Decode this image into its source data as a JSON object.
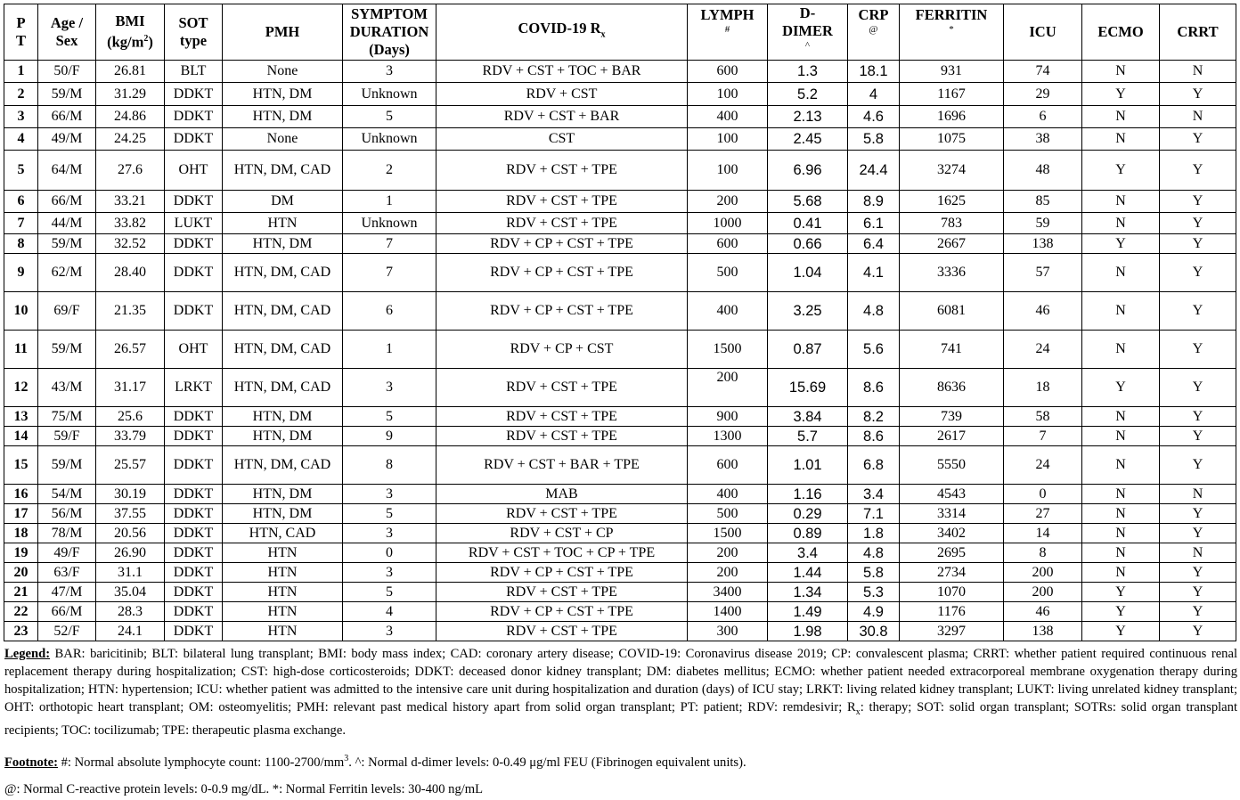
{
  "headers": {
    "pt": [
      "P",
      "T"
    ],
    "age": [
      "Age /",
      "Sex"
    ],
    "bmi": [
      "BMI",
      "(kg/m",
      "2",
      ")"
    ],
    "sot": [
      "SOT",
      "type"
    ],
    "pmh": "PMH",
    "symptom": [
      "SYMPTOM",
      "DURATION",
      "(Days)"
    ],
    "covid": [
      "COVID-19 R",
      "x"
    ],
    "lymph": [
      "LYMPH",
      "#"
    ],
    "ddimer": [
      "D-",
      "DIMER",
      "^"
    ],
    "crp": [
      "CRP",
      "@"
    ],
    "ferritin": [
      "FERRITIN",
      "*"
    ],
    "icu": "ICU",
    "ecmo": "ECMO",
    "crrt": "CRRT"
  },
  "rows": [
    [
      "1",
      "50/F",
      "26.81",
      "BLT",
      "None",
      "3",
      "RDV + CST + TOC + BAR",
      "600",
      "1.3",
      "18.1",
      "931",
      "74",
      "N",
      "N"
    ],
    [
      "2",
      "59/M",
      "31.29",
      "DDKT",
      "HTN, DM",
      "Unknown",
      "RDV + CST",
      "100",
      "5.2",
      "4",
      "1167",
      "29",
      "Y",
      "Y"
    ],
    [
      "3",
      "66/M",
      "24.86",
      "DDKT",
      "HTN, DM",
      "5",
      "RDV + CST + BAR",
      "400",
      "2.13",
      "4.6",
      "1696",
      "6",
      "N",
      "N"
    ],
    [
      "4",
      "49/M",
      "24.25",
      "DDKT",
      "None",
      "Unknown",
      "CST",
      "100",
      "2.45",
      "5.8",
      "1075",
      "38",
      "N",
      "Y"
    ],
    [
      "5",
      "64/M",
      "27.6",
      "OHT",
      "HTN, DM, CAD",
      "2",
      "RDV + CST + TPE",
      "100",
      "6.96",
      "24.4",
      "3274",
      "48",
      "Y",
      "Y"
    ],
    [
      "6",
      "66/M",
      "33.21",
      "DDKT",
      "DM",
      "1",
      "RDV + CST + TPE",
      "200",
      "5.68",
      "8.9",
      "1625",
      "85",
      "N",
      "Y"
    ],
    [
      "7",
      "44/M",
      "33.82",
      "LUKT",
      "HTN",
      "Unknown",
      "RDV + CST + TPE",
      "1000",
      "0.41",
      "6.1",
      "783",
      "59",
      "N",
      "Y"
    ],
    [
      "8",
      "59/M",
      "32.52",
      "DDKT",
      "HTN, DM",
      "7",
      "RDV + CP + CST + TPE",
      "600",
      "0.66",
      "6.4",
      "2667",
      "138",
      "Y",
      "Y"
    ],
    [
      "9",
      "62/M",
      "28.40",
      "DDKT",
      "HTN, DM, CAD",
      "7",
      "RDV + CP + CST + TPE",
      "500",
      "1.04",
      "4.1",
      "3336",
      "57",
      "N",
      "Y"
    ],
    [
      "10",
      "69/F",
      "21.35",
      "DDKT",
      "HTN, DM, CAD",
      "6",
      "RDV + CP + CST + TPE",
      "400",
      "3.25",
      "4.8",
      "6081",
      "46",
      "N",
      "Y"
    ],
    [
      "11",
      "59/M",
      "26.57",
      "OHT",
      "HTN, DM, CAD",
      "1",
      "RDV + CP + CST",
      "1500",
      "0.87",
      "5.6",
      "741",
      "24",
      "N",
      "Y"
    ],
    [
      "12",
      "43/M",
      "31.17",
      "LRKT",
      "HTN, DM, CAD",
      "3",
      "RDV + CST + TPE",
      "200",
      "15.69",
      "8.6",
      "8636",
      "18",
      "Y",
      "Y"
    ],
    [
      "13",
      "75/M",
      "25.6",
      "DDKT",
      "HTN, DM",
      "5",
      "RDV + CST + TPE",
      "900",
      "3.84",
      "8.2",
      "739",
      "58",
      "N",
      "Y"
    ],
    [
      "14",
      "59/F",
      "33.79",
      "DDKT",
      "HTN, DM",
      "9",
      "RDV + CST + TPE",
      "1300",
      "5.7",
      "8.6",
      "2617",
      "7",
      "N",
      "Y"
    ],
    [
      "15",
      "59/M",
      "25.57",
      "DDKT",
      "HTN, DM, CAD",
      "8",
      "RDV + CST + BAR + TPE",
      "600",
      "1.01",
      "6.8",
      "5550",
      "24",
      "N",
      "Y"
    ],
    [
      "16",
      "54/M",
      "30.19",
      "DDKT",
      "HTN, DM",
      "3",
      "MAB",
      "400",
      "1.16",
      "3.4",
      "4543",
      "0",
      "N",
      "N"
    ],
    [
      "17",
      "56/M",
      "37.55",
      "DDKT",
      "HTN, DM",
      "5",
      "RDV + CST + TPE",
      "500",
      "0.29",
      "7.1",
      "3314",
      "27",
      "N",
      "Y"
    ],
    [
      "18",
      "78/M",
      "20.56",
      "DDKT",
      "HTN, CAD",
      "3",
      "RDV + CST + CP",
      "1500",
      "0.89",
      "1.8",
      "3402",
      "14",
      "N",
      "Y"
    ],
    [
      "19",
      "49/F",
      "26.90",
      "DDKT",
      "HTN",
      "0",
      "RDV + CST + TOC + CP + TPE",
      "200",
      "3.4",
      "4.8",
      "2695",
      "8",
      "N",
      "N"
    ],
    [
      "20",
      "63/F",
      "31.1",
      "DDKT",
      "HTN",
      "3",
      "RDV + CP + CST + TPE",
      "200",
      "1.44",
      "5.8",
      "2734",
      "200",
      "N",
      "Y"
    ],
    [
      "21",
      "47/M",
      "35.04",
      "DDKT",
      "HTN",
      "5",
      "RDV + CST + TPE",
      "3400",
      "1.34",
      "5.3",
      "1070",
      "200",
      "Y",
      "Y"
    ],
    [
      "22",
      "66/M",
      "28.3",
      "DDKT",
      "HTN",
      "4",
      "RDV + CP + CST + TPE",
      "1400",
      "1.49",
      "4.9",
      "1176",
      "46",
      "Y",
      "Y"
    ],
    [
      "23",
      "52/F",
      "24.1",
      "DDKT",
      "HTN",
      "3",
      "RDV + CST + TPE",
      "300",
      "1.98",
      "30.8",
      "3297",
      "138",
      "Y",
      "Y"
    ]
  ],
  "legend": {
    "label": "Legend:",
    "text_a": " BAR: baricitinib; BLT: bilateral lung transplant; BMI: body mass index; CAD: coronary artery disease; COVID-19: Coronavirus disease 2019; CP: convalescent plasma; CRRT: whether patient required continuous renal replacement therapy during hospitalization; CST: high-dose corticosteroids; DDKT: deceased donor kidney transplant; DM: diabetes mellitus; ECMO: whether patient needed extracorporeal membrane oxygenation therapy during hospitalization; HTN: hypertension; ICU: whether patient was admitted to the intensive care unit during hospitalization and duration (days) of ICU stay; LRKT: living related kidney transplant; LUKT: living unrelated kidney transplant; OHT: orthotopic heart transplant; OM: osteomyelitis; PMH: relevant past medical history apart from solid organ transplant; PT: patient; RDV: remdesivir; R",
    "text_sub": "x",
    "text_b": ": therapy; SOT: solid organ transplant; SOTRs: solid organ transplant recipients; TOC: tocilizumab; TPE: therapeutic plasma exchange."
  },
  "footnote": {
    "label": "Footnote:",
    "text_a": " #:   Normal absolute lymphocyte count: 1100-2700/mm",
    "text_sup": "3",
    "text_b": ". ^:  Normal d-dimer levels: 0-0.49 μg/ml FEU (Fibrinogen equivalent units).",
    "line2": "@:  Normal C-reactive protein levels: 0-0.9 mg/dL. *: Normal Ferritin levels: 30-400 ng/mL"
  }
}
